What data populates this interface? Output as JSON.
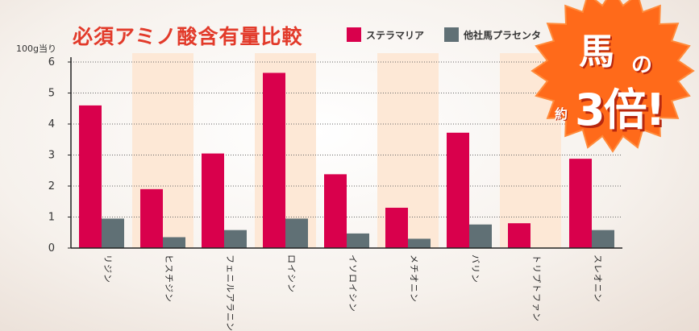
{
  "title": "必須アミノ酸含有量比較",
  "badge": {
    "line1": "馬",
    "line2": "の",
    "prefix": "約",
    "main": "3倍!"
  },
  "colors": {
    "series0": "#d9004c",
    "series1": "#607075",
    "band": "#fde8d6",
    "badge": "#ff6a1a"
  },
  "chart_data": {
    "type": "bar",
    "ylabel": "100g当り",
    "ylim": [
      0,
      6
    ],
    "yticks": [
      0,
      1,
      2,
      3,
      4,
      5,
      6
    ],
    "grid": true,
    "legend_position": "top",
    "categories": [
      "リジン",
      "ヒスチジン",
      "フェニルアラニン",
      "ロイシン",
      "イソロイシン",
      "メチオニン",
      "バリン",
      "トリプトファン",
      "スレオニン"
    ],
    "series": [
      {
        "name": "ステラマリア",
        "values": [
          4.6,
          1.9,
          3.05,
          5.65,
          2.38,
          1.3,
          3.72,
          0.8,
          2.88
        ]
      },
      {
        "name": "他社馬プラセンタ",
        "values": [
          0.95,
          0.35,
          0.58,
          0.95,
          0.47,
          0.3,
          0.76,
          0.0,
          0.58
        ]
      }
    ]
  }
}
